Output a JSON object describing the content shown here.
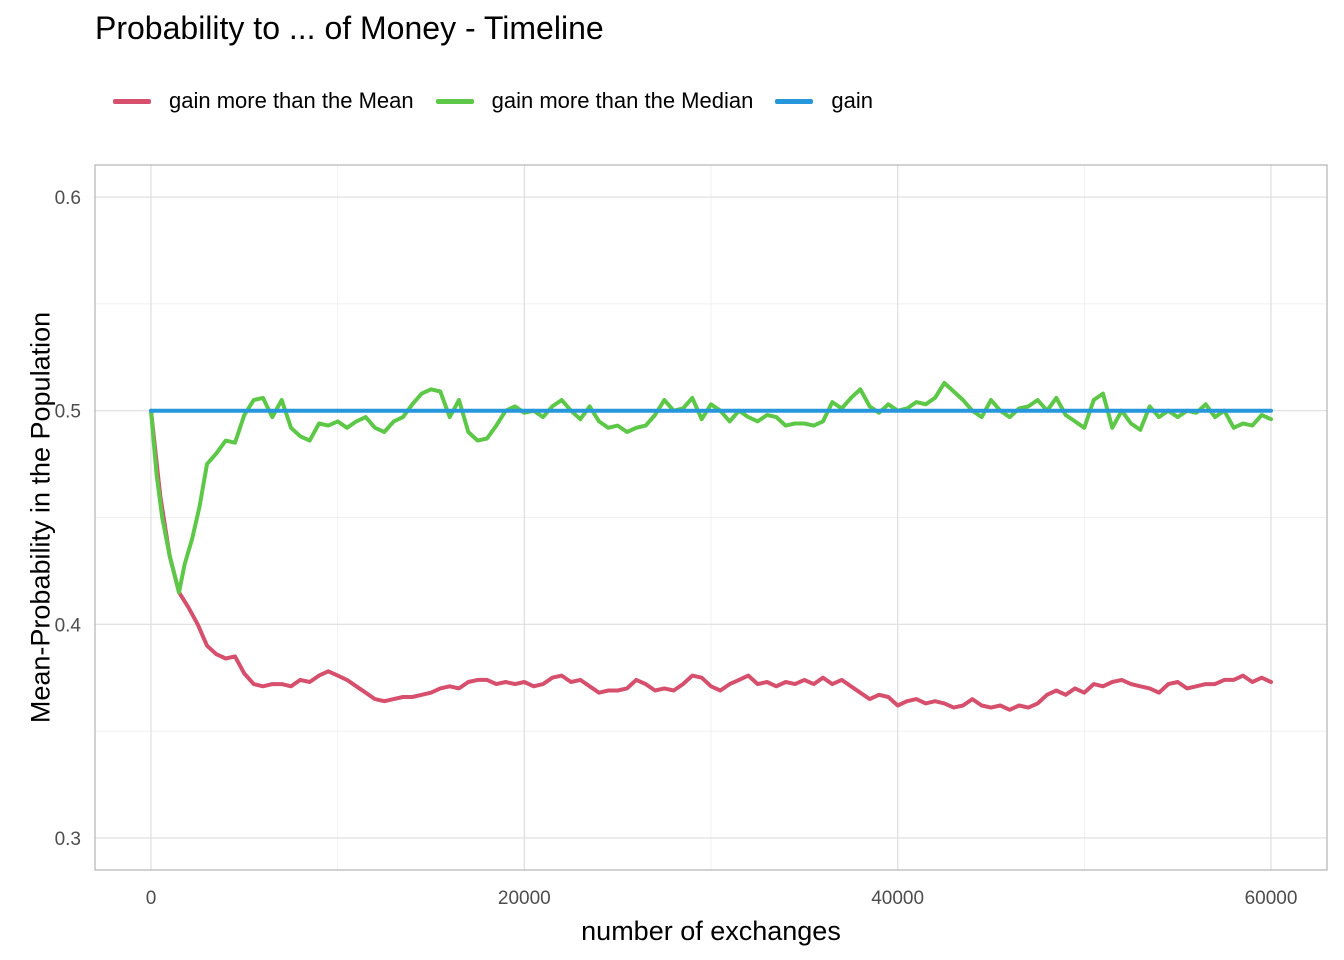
{
  "chart_data": {
    "type": "line",
    "title": "Probability to ... of Money - Timeline",
    "xlabel": "number of exchanges",
    "ylabel": "Mean-Probability in the Population",
    "xlim": [
      -3000,
      63000
    ],
    "ylim": [
      0.285,
      0.615
    ],
    "x_ticks": [
      0,
      20000,
      40000,
      60000
    ],
    "x_tick_labels": [
      "0",
      "20000",
      "40000",
      "60000"
    ],
    "y_ticks": [
      0.3,
      0.4,
      0.5,
      0.6
    ],
    "y_tick_labels": [
      "0.3",
      "0.4",
      "0.5",
      "0.6"
    ],
    "grid": true,
    "legend_position": "top-left",
    "series": [
      {
        "name": "gain more than the Mean",
        "color": "#d6506d",
        "points": [
          [
            0,
            0.5
          ],
          [
            500,
            0.46
          ],
          [
            1000,
            0.432
          ],
          [
            1500,
            0.415
          ],
          [
            2000,
            0.408
          ],
          [
            2500,
            0.4
          ],
          [
            3000,
            0.39
          ],
          [
            3500,
            0.386
          ],
          [
            4000,
            0.384
          ],
          [
            4500,
            0.385
          ],
          [
            5000,
            0.377
          ],
          [
            5500,
            0.372
          ],
          [
            6000,
            0.371
          ],
          [
            6500,
            0.372
          ],
          [
            7000,
            0.372
          ],
          [
            7500,
            0.371
          ],
          [
            8000,
            0.374
          ],
          [
            8500,
            0.373
          ],
          [
            9000,
            0.376
          ],
          [
            9500,
            0.378
          ],
          [
            10000,
            0.376
          ],
          [
            10500,
            0.374
          ],
          [
            11000,
            0.371
          ],
          [
            11500,
            0.368
          ],
          [
            12000,
            0.365
          ],
          [
            12500,
            0.364
          ],
          [
            13000,
            0.365
          ],
          [
            13500,
            0.366
          ],
          [
            14000,
            0.366
          ],
          [
            14500,
            0.367
          ],
          [
            15000,
            0.368
          ],
          [
            15500,
            0.37
          ],
          [
            16000,
            0.371
          ],
          [
            16500,
            0.37
          ],
          [
            17000,
            0.373
          ],
          [
            17500,
            0.374
          ],
          [
            18000,
            0.374
          ],
          [
            18500,
            0.372
          ],
          [
            19000,
            0.373
          ],
          [
            19500,
            0.372
          ],
          [
            20000,
            0.373
          ],
          [
            20500,
            0.371
          ],
          [
            21000,
            0.372
          ],
          [
            21500,
            0.375
          ],
          [
            22000,
            0.376
          ],
          [
            22500,
            0.373
          ],
          [
            23000,
            0.374
          ],
          [
            23500,
            0.371
          ],
          [
            24000,
            0.368
          ],
          [
            24500,
            0.369
          ],
          [
            25000,
            0.369
          ],
          [
            25500,
            0.37
          ],
          [
            26000,
            0.374
          ],
          [
            26500,
            0.372
          ],
          [
            27000,
            0.369
          ],
          [
            27500,
            0.37
          ],
          [
            28000,
            0.369
          ],
          [
            28500,
            0.372
          ],
          [
            29000,
            0.376
          ],
          [
            29500,
            0.375
          ],
          [
            30000,
            0.371
          ],
          [
            30500,
            0.369
          ],
          [
            31000,
            0.372
          ],
          [
            31500,
            0.374
          ],
          [
            32000,
            0.376
          ],
          [
            32500,
            0.372
          ],
          [
            33000,
            0.373
          ],
          [
            33500,
            0.371
          ],
          [
            34000,
            0.373
          ],
          [
            34500,
            0.372
          ],
          [
            35000,
            0.374
          ],
          [
            35500,
            0.372
          ],
          [
            36000,
            0.375
          ],
          [
            36500,
            0.372
          ],
          [
            37000,
            0.374
          ],
          [
            37500,
            0.371
          ],
          [
            38000,
            0.368
          ],
          [
            38500,
            0.365
          ],
          [
            39000,
            0.367
          ],
          [
            39500,
            0.366
          ],
          [
            40000,
            0.362
          ],
          [
            40500,
            0.364
          ],
          [
            41000,
            0.365
          ],
          [
            41500,
            0.363
          ],
          [
            42000,
            0.364
          ],
          [
            42500,
            0.363
          ],
          [
            43000,
            0.361
          ],
          [
            43500,
            0.362
          ],
          [
            44000,
            0.365
          ],
          [
            44500,
            0.362
          ],
          [
            45000,
            0.361
          ],
          [
            45500,
            0.362
          ],
          [
            46000,
            0.36
          ],
          [
            46500,
            0.362
          ],
          [
            47000,
            0.361
          ],
          [
            47500,
            0.363
          ],
          [
            48000,
            0.367
          ],
          [
            48500,
            0.369
          ],
          [
            49000,
            0.367
          ],
          [
            49500,
            0.37
          ],
          [
            50000,
            0.368
          ],
          [
            50500,
            0.372
          ],
          [
            51000,
            0.371
          ],
          [
            51500,
            0.373
          ],
          [
            52000,
            0.374
          ],
          [
            52500,
            0.372
          ],
          [
            53000,
            0.371
          ],
          [
            53500,
            0.37
          ],
          [
            54000,
            0.368
          ],
          [
            54500,
            0.372
          ],
          [
            55000,
            0.373
          ],
          [
            55500,
            0.37
          ],
          [
            56000,
            0.371
          ],
          [
            56500,
            0.372
          ],
          [
            57000,
            0.372
          ],
          [
            57500,
            0.374
          ],
          [
            58000,
            0.374
          ],
          [
            58500,
            0.376
          ],
          [
            59000,
            0.373
          ],
          [
            59500,
            0.375
          ],
          [
            60000,
            0.373
          ]
        ]
      },
      {
        "name": "gain more than the Median",
        "color": "#5dc847",
        "points": [
          [
            0,
            0.5
          ],
          [
            300,
            0.47
          ],
          [
            600,
            0.45
          ],
          [
            1000,
            0.432
          ],
          [
            1500,
            0.415
          ],
          [
            1800,
            0.428
          ],
          [
            2200,
            0.44
          ],
          [
            2600,
            0.455
          ],
          [
            3000,
            0.475
          ],
          [
            3500,
            0.48
          ],
          [
            4000,
            0.486
          ],
          [
            4500,
            0.485
          ],
          [
            5000,
            0.498
          ],
          [
            5500,
            0.505
          ],
          [
            6000,
            0.506
          ],
          [
            6500,
            0.497
          ],
          [
            7000,
            0.505
          ],
          [
            7500,
            0.492
          ],
          [
            8000,
            0.488
          ],
          [
            8500,
            0.486
          ],
          [
            9000,
            0.494
          ],
          [
            9500,
            0.493
          ],
          [
            10000,
            0.495
          ],
          [
            10500,
            0.492
          ],
          [
            11000,
            0.495
          ],
          [
            11500,
            0.497
          ],
          [
            12000,
            0.492
          ],
          [
            12500,
            0.49
          ],
          [
            13000,
            0.495
          ],
          [
            13500,
            0.497
          ],
          [
            14000,
            0.503
          ],
          [
            14500,
            0.508
          ],
          [
            15000,
            0.51
          ],
          [
            15500,
            0.509
          ],
          [
            16000,
            0.497
          ],
          [
            16500,
            0.505
          ],
          [
            17000,
            0.49
          ],
          [
            17500,
            0.486
          ],
          [
            18000,
            0.487
          ],
          [
            18500,
            0.493
          ],
          [
            19000,
            0.5
          ],
          [
            19500,
            0.502
          ],
          [
            20000,
            0.499
          ],
          [
            20500,
            0.5
          ],
          [
            21000,
            0.497
          ],
          [
            21500,
            0.502
          ],
          [
            22000,
            0.505
          ],
          [
            22500,
            0.5
          ],
          [
            23000,
            0.496
          ],
          [
            23500,
            0.502
          ],
          [
            24000,
            0.495
          ],
          [
            24500,
            0.492
          ],
          [
            25000,
            0.493
          ],
          [
            25500,
            0.49
          ],
          [
            26000,
            0.492
          ],
          [
            26500,
            0.493
          ],
          [
            27000,
            0.498
          ],
          [
            27500,
            0.505
          ],
          [
            28000,
            0.5
          ],
          [
            28500,
            0.501
          ],
          [
            29000,
            0.506
          ],
          [
            29500,
            0.496
          ],
          [
            30000,
            0.503
          ],
          [
            30500,
            0.5
          ],
          [
            31000,
            0.495
          ],
          [
            31500,
            0.5
          ],
          [
            32000,
            0.497
          ],
          [
            32500,
            0.495
          ],
          [
            33000,
            0.498
          ],
          [
            33500,
            0.497
          ],
          [
            34000,
            0.493
          ],
          [
            34500,
            0.494
          ],
          [
            35000,
            0.494
          ],
          [
            35500,
            0.493
          ],
          [
            36000,
            0.495
          ],
          [
            36500,
            0.504
          ],
          [
            37000,
            0.501
          ],
          [
            37500,
            0.506
          ],
          [
            38000,
            0.51
          ],
          [
            38500,
            0.502
          ],
          [
            39000,
            0.499
          ],
          [
            39500,
            0.503
          ],
          [
            40000,
            0.5
          ],
          [
            40500,
            0.501
          ],
          [
            41000,
            0.504
          ],
          [
            41500,
            0.503
          ],
          [
            42000,
            0.506
          ],
          [
            42500,
            0.513
          ],
          [
            43000,
            0.509
          ],
          [
            43500,
            0.505
          ],
          [
            44000,
            0.5
          ],
          [
            44500,
            0.497
          ],
          [
            45000,
            0.505
          ],
          [
            45500,
            0.5
          ],
          [
            46000,
            0.497
          ],
          [
            46500,
            0.501
          ],
          [
            47000,
            0.502
          ],
          [
            47500,
            0.505
          ],
          [
            48000,
            0.5
          ],
          [
            48500,
            0.506
          ],
          [
            49000,
            0.498
          ],
          [
            49500,
            0.495
          ],
          [
            50000,
            0.492
          ],
          [
            50500,
            0.505
          ],
          [
            51000,
            0.508
          ],
          [
            51500,
            0.492
          ],
          [
            52000,
            0.5
          ],
          [
            52500,
            0.494
          ],
          [
            53000,
            0.491
          ],
          [
            53500,
            0.502
          ],
          [
            54000,
            0.497
          ],
          [
            54500,
            0.5
          ],
          [
            55000,
            0.497
          ],
          [
            55500,
            0.5
          ],
          [
            56000,
            0.499
          ],
          [
            56500,
            0.503
          ],
          [
            57000,
            0.497
          ],
          [
            57500,
            0.5
          ],
          [
            58000,
            0.492
          ],
          [
            58500,
            0.494
          ],
          [
            59000,
            0.493
          ],
          [
            59500,
            0.498
          ],
          [
            60000,
            0.496
          ]
        ]
      },
      {
        "name": "gain",
        "color": "#2797db",
        "points": [
          [
            0,
            0.5
          ],
          [
            60000,
            0.5
          ]
        ]
      }
    ]
  }
}
